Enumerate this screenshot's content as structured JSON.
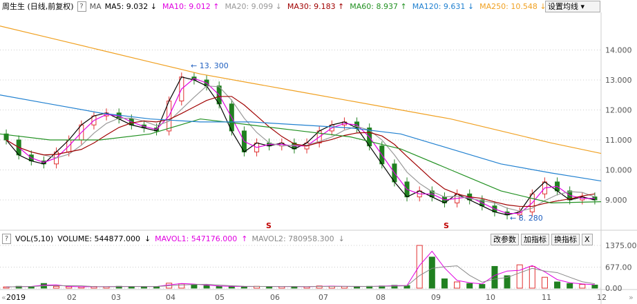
{
  "header": {
    "title": "周生生 (日线,前复权)",
    "help": "?",
    "ma": "MA",
    "items": [
      {
        "label": "MA5: 9.032",
        "arrow": "↓",
        "color": "#000000"
      },
      {
        "label": "MA10: 9.012",
        "arrow": "↑",
        "color": "#e000e0"
      },
      {
        "label": "MA20: 9.099",
        "arrow": "↓",
        "color": "#999999"
      },
      {
        "label": "MA30: 9.183",
        "arrow": "↑",
        "color": "#a00000"
      },
      {
        "label": "MA60: 8.937",
        "arrow": "↑",
        "color": "#209020"
      },
      {
        "label": "MA120: 9.631",
        "arrow": "↓",
        "color": "#2080d0"
      },
      {
        "label": "MA250: 10.548",
        "arrow": "↓",
        "color": "#f0a020"
      }
    ],
    "set_ma": "设置均线 ▾"
  },
  "volume_header": {
    "help": "?",
    "name": "VOL(5,10)",
    "volume": "VOLUME: 544877.000",
    "volume_arrow": "↓",
    "mavol1": "MAVOL1: 547176.000",
    "mavol1_arrow": "↑",
    "mavol2": "MAVOL2: 780958.300",
    "mavol2_arrow": "↓"
  },
  "volume_buttons": [
    "改参数",
    "加指标",
    "换指标",
    "X"
  ],
  "nav": {
    "prev": "«",
    "next": "»"
  },
  "chart_data": {
    "type": "candlestick",
    "price_axis": {
      "ticks": [
        "14.000",
        "13.000",
        "12.000",
        "11.000",
        "10.000",
        "9.000"
      ],
      "range": [
        8.0,
        15.0
      ]
    },
    "x_ticks": [
      "2019",
      "02",
      "03",
      "04",
      "05",
      "06",
      "07",
      "08",
      "09",
      "10",
      "11",
      "12"
    ],
    "annotations": [
      {
        "text": "13. 300",
        "value": 13.3
      },
      {
        "text": "8. 280",
        "value": 8.28
      }
    ],
    "signal_marks": [
      "S",
      "S"
    ],
    "closes": [
      11.0,
      10.5,
      10.3,
      10.2,
      10.6,
      11.0,
      11.5,
      11.8,
      11.9,
      11.7,
      11.5,
      11.4,
      11.3,
      12.3,
      13.1,
      13.0,
      12.8,
      12.2,
      11.3,
      10.6,
      10.9,
      10.8,
      10.9,
      10.7,
      10.9,
      11.3,
      11.5,
      11.6,
      11.4,
      10.8,
      10.2,
      9.6,
      9.1,
      9.3,
      9.1,
      8.9,
      9.2,
      9.0,
      8.8,
      8.6,
      8.5,
      8.6,
      9.2,
      9.6,
      9.3,
      9.0,
      9.1,
      9.0
    ],
    "ma250": [
      14.8,
      14.4,
      14.0,
      13.6,
      13.2,
      12.9,
      12.6,
      12.3,
      12.0,
      11.7,
      11.3,
      10.9,
      10.55
    ],
    "ma120": [
      12.5,
      12.2,
      11.9,
      11.7,
      11.6,
      11.6,
      11.5,
      11.4,
      11.2,
      10.7,
      10.2,
      9.9,
      9.63
    ],
    "ma60": [
      11.2,
      11.0,
      11.0,
      11.2,
      11.7,
      11.5,
      11.3,
      11.1,
      10.7,
      10.0,
      9.3,
      8.9,
      8.94
    ],
    "volume_axis": {
      "ticks": [
        "1375.00",
        "677.00",
        "0.00"
      ],
      "range": [
        0,
        1375
      ]
    },
    "volume": [
      40,
      60,
      50,
      150,
      60,
      50,
      40,
      55,
      45,
      60,
      50,
      55,
      50,
      160,
      140,
      120,
      80,
      60,
      55,
      50,
      60,
      50,
      55,
      50,
      45,
      70,
      60,
      55,
      50,
      60,
      70,
      90,
      80,
      1375,
      1000,
      300,
      200,
      150,
      120,
      700,
      400,
      750,
      700,
      350,
      200,
      150,
      120,
      100
    ]
  }
}
